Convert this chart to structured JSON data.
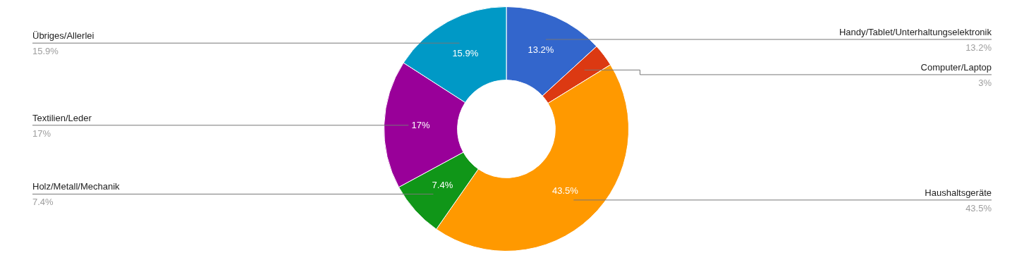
{
  "chart_data": {
    "type": "donut",
    "categories": [
      "Handy/Tablet/Unterhaltungselektronik",
      "Computer/Laptop",
      "Haushaltsgeräte",
      "Holz/Metall/Mechanik",
      "Textilien/Leder",
      "Übriges/Allerlei"
    ],
    "values": [
      13.2,
      3,
      43.5,
      7.4,
      17,
      15.9
    ],
    "value_labels": [
      "13.2%",
      "3%",
      "43.5%",
      "7.4%",
      "17%",
      "15.9%"
    ],
    "colors": [
      "#3366cc",
      "#dc3912",
      "#ff9900",
      "#109618",
      "#990099",
      "#0099c6"
    ],
    "legend": false
  }
}
